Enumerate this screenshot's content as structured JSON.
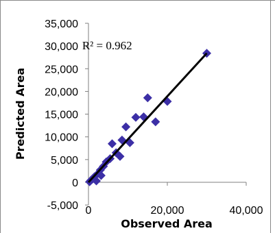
{
  "chart_data": {
    "type": "scatter",
    "title": "",
    "xlabel": "Observed Area",
    "ylabel": "Predicted Area",
    "xlim": [
      -500,
      40000
    ],
    "ylim": [
      -5000,
      35000
    ],
    "x_ticks": [
      0,
      20000,
      40000
    ],
    "x_tick_labels": [
      "0",
      "20,000",
      "40,000"
    ],
    "y_ticks": [
      -5000,
      0,
      5000,
      10000,
      15000,
      20000,
      25000,
      30000,
      35000
    ],
    "y_tick_labels": [
      "-5,000",
      "0",
      "5,000",
      "10,000",
      "15,000",
      "20,000",
      "25,000",
      "30,000",
      "35,000"
    ],
    "grid": false,
    "legend": "none",
    "marker_color": "#3c2fa6",
    "line_color": "#000000",
    "annotation": {
      "text": "R² = 0.962",
      "x": -200,
      "y": 30000
    },
    "trendline": {
      "x": [
        0,
        30000
      ],
      "y": [
        0,
        28400
      ]
    },
    "series": [
      {
        "values": [
          {
            "x": 300,
            "y": 100
          },
          {
            "x": 600,
            "y": 400
          },
          {
            "x": 1000,
            "y": 700
          },
          {
            "x": 1500,
            "y": 1200
          },
          {
            "x": 2000,
            "y": 300
          },
          {
            "x": 2500,
            "y": 2000
          },
          {
            "x": 3000,
            "y": 2700
          },
          {
            "x": 3200,
            "y": 1500
          },
          {
            "x": 3800,
            "y": 3500
          },
          {
            "x": 4500,
            "y": 4500
          },
          {
            "x": 5500,
            "y": 5200
          },
          {
            "x": 6000,
            "y": 8500
          },
          {
            "x": 7000,
            "y": 6500
          },
          {
            "x": 8000,
            "y": 5700
          },
          {
            "x": 8500,
            "y": 9300
          },
          {
            "x": 9500,
            "y": 12200
          },
          {
            "x": 10500,
            "y": 8700
          },
          {
            "x": 12000,
            "y": 14300
          },
          {
            "x": 14000,
            "y": 14400
          },
          {
            "x": 15000,
            "y": 18600
          },
          {
            "x": 17000,
            "y": 13300
          },
          {
            "x": 20000,
            "y": 17800
          },
          {
            "x": 30000,
            "y": 28400
          }
        ]
      }
    ]
  }
}
